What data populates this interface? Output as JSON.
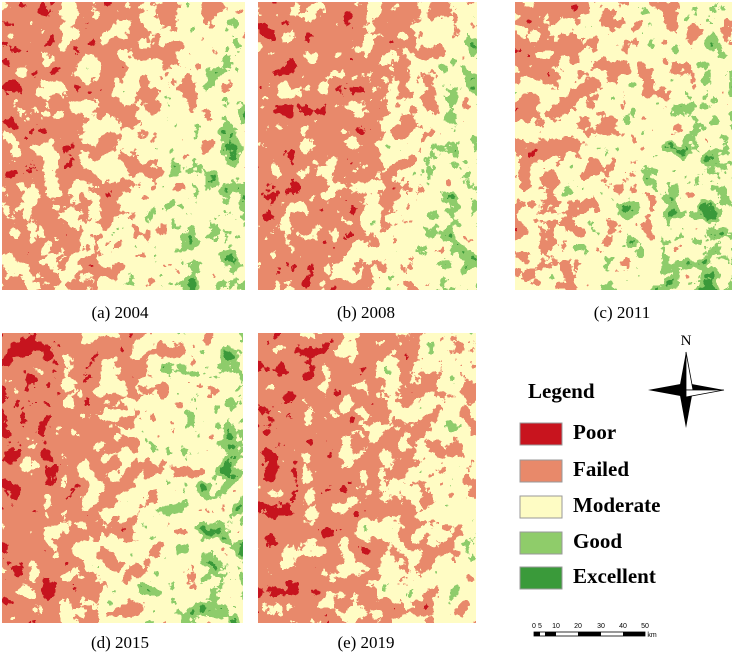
{
  "captions": [
    "(a)  2004",
    "(b)  2008",
    "(c)  2011",
    "(d)  2015",
    "(e)  2019"
  ],
  "legend": {
    "title": "Legend",
    "items": [
      "Poor",
      "Failed",
      "Moderate",
      "Good",
      "Excellent"
    ]
  },
  "north": "N",
  "scale": {
    "labels": [
      0,
      5,
      10,
      20,
      30,
      40,
      50
    ],
    "unit": "km"
  }
}
